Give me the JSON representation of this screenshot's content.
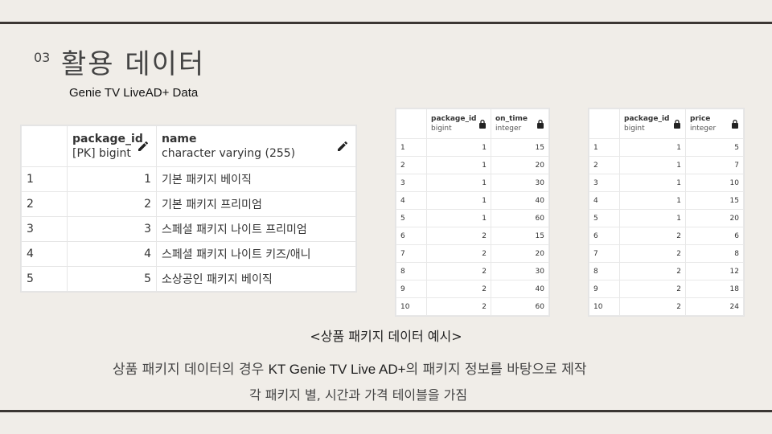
{
  "slide": {
    "section_number": "03",
    "title": "활용 데이터",
    "subtitle": "Genie TV LiveAD+ Data"
  },
  "package_table": {
    "columns": [
      {
        "name": "package_id",
        "type": "[PK] bigint"
      },
      {
        "name": "name",
        "type": "character varying (255)"
      }
    ],
    "rows": [
      {
        "row": "1",
        "package_id": "1",
        "name": "기본 패키지 베이직"
      },
      {
        "row": "2",
        "package_id": "2",
        "name": "기본 패키지 프리미엄"
      },
      {
        "row": "3",
        "package_id": "3",
        "name": "스페셜 패키지 나이트 프리미엄"
      },
      {
        "row": "4",
        "package_id": "4",
        "name": "스페셜 패키지 나이트 키즈/애니"
      },
      {
        "row": "5",
        "package_id": "5",
        "name": "소상공인 패키지 베이직"
      }
    ]
  },
  "time_table": {
    "columns": [
      {
        "name": "package_id",
        "type": "bigint"
      },
      {
        "name": "on_time",
        "type": "integer"
      }
    ],
    "rows": [
      [
        "1",
        "1",
        "15"
      ],
      [
        "2",
        "1",
        "20"
      ],
      [
        "3",
        "1",
        "30"
      ],
      [
        "4",
        "1",
        "40"
      ],
      [
        "5",
        "1",
        "60"
      ],
      [
        "6",
        "2",
        "15"
      ],
      [
        "7",
        "2",
        "20"
      ],
      [
        "8",
        "2",
        "30"
      ],
      [
        "9",
        "2",
        "40"
      ],
      [
        "10",
        "2",
        "60"
      ]
    ]
  },
  "price_table": {
    "columns": [
      {
        "name": "package_id",
        "type": "bigint"
      },
      {
        "name": "price",
        "type": "integer"
      }
    ],
    "rows": [
      [
        "1",
        "1",
        "5"
      ],
      [
        "2",
        "1",
        "7"
      ],
      [
        "3",
        "1",
        "10"
      ],
      [
        "4",
        "1",
        "15"
      ],
      [
        "5",
        "1",
        "20"
      ],
      [
        "6",
        "2",
        "6"
      ],
      [
        "7",
        "2",
        "8"
      ],
      [
        "8",
        "2",
        "12"
      ],
      [
        "9",
        "2",
        "18"
      ],
      [
        "10",
        "2",
        "24"
      ]
    ]
  },
  "caption": "<상품 패키지 데이터 예시>",
  "description": {
    "line1_prefix": "상품 패키지 데이터의 경우 ",
    "line1_brand": "KT Genie TV Live AD+",
    "line1_suffix": "의 패키지 정보를 바탕으로 제작",
    "line2": "각 패키지 별, 시간과 가격 테이블을 가짐"
  },
  "icons": {
    "edit": "pencil-icon",
    "locked": "lock-icon"
  }
}
